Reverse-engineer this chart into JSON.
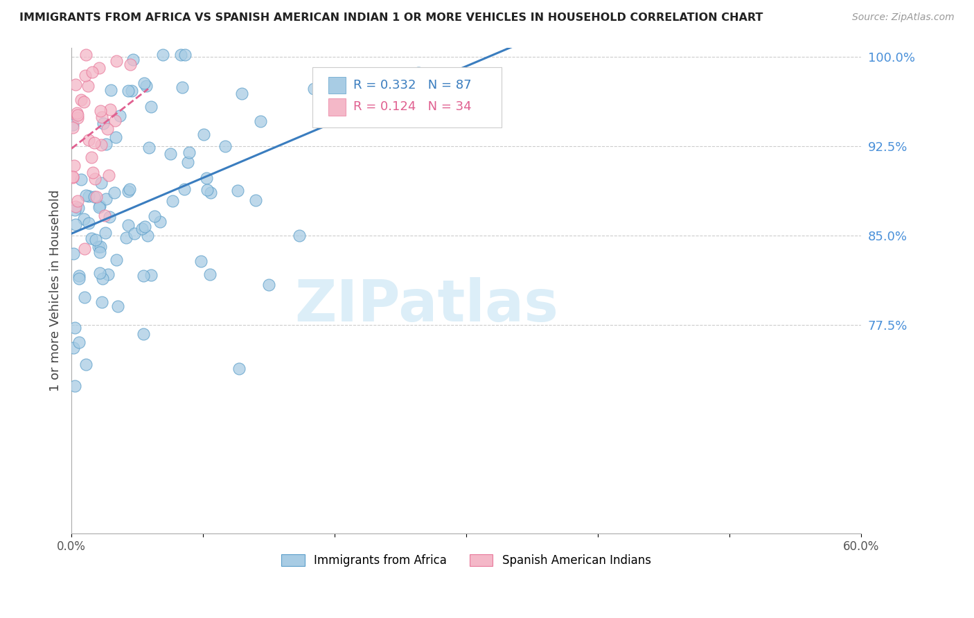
{
  "title": "IMMIGRANTS FROM AFRICA VS SPANISH AMERICAN INDIAN 1 OR MORE VEHICLES IN HOUSEHOLD CORRELATION CHART",
  "source": "Source: ZipAtlas.com",
  "ylabel": "1 or more Vehicles in Household",
  "xlim": [
    0.0,
    0.6
  ],
  "ylim": [
    0.6,
    1.008
  ],
  "xticks": [
    0.0,
    0.1,
    0.2,
    0.3,
    0.4,
    0.5,
    0.6
  ],
  "xticklabels": [
    "0.0%",
    "",
    "",
    "",
    "",
    "",
    "60.0%"
  ],
  "yticks": [
    0.775,
    0.85,
    0.925,
    1.0
  ],
  "yticklabels": [
    "77.5%",
    "85.0%",
    "92.5%",
    "100.0%"
  ],
  "blue_r": "0.332",
  "blue_n": "87",
  "pink_r": "0.124",
  "pink_n": "34",
  "blue_color": "#a8cce4",
  "pink_color": "#f4b8c8",
  "blue_edge_color": "#5b9ec9",
  "pink_edge_color": "#e8789a",
  "blue_line_color": "#3a7dbf",
  "pink_line_color": "#e06090",
  "label_color": "#4a90d9",
  "legend_blue_label": "Immigrants from Africa",
  "legend_pink_label": "Spanish American Indians",
  "watermark": "ZIPatlas",
  "watermark_color": "#dceef8"
}
